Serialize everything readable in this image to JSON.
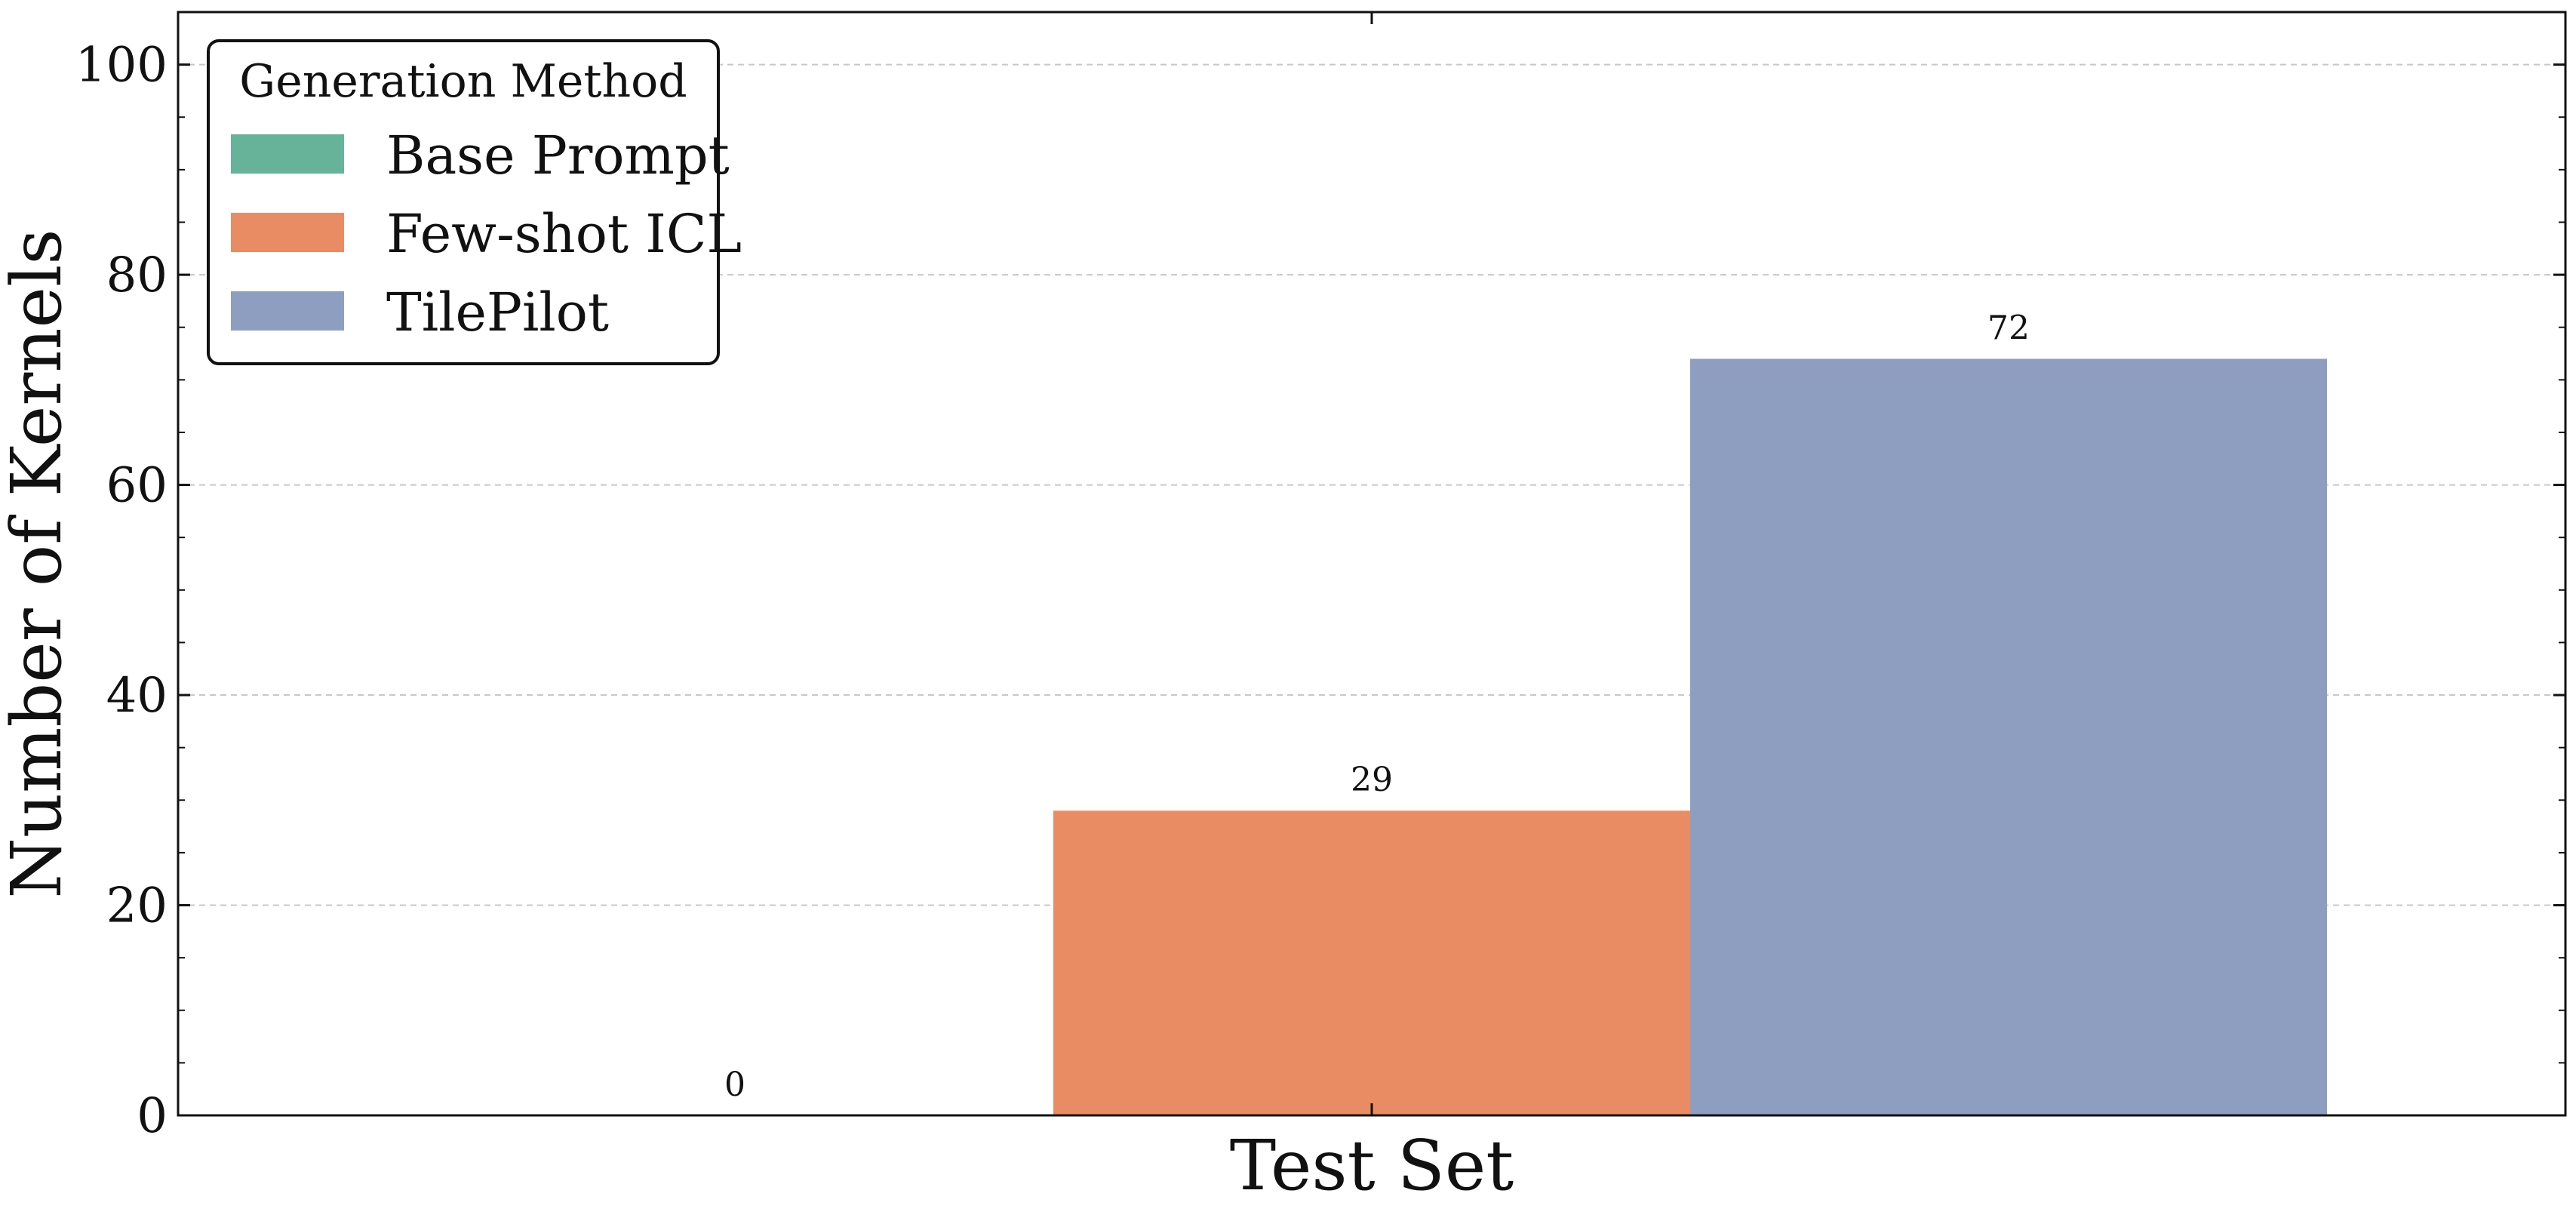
{
  "chart_data": {
    "type": "bar",
    "categories": [
      "Test Set"
    ],
    "series": [
      {
        "name": "Base Prompt",
        "values": [
          0
        ],
        "color": "#66b39a"
      },
      {
        "name": "Few-shot ICL",
        "values": [
          29
        ],
        "color": "#e98c64"
      },
      {
        "name": "TilePilot",
        "values": [
          72
        ],
        "color": "#8d9ec0"
      }
    ],
    "xlabel": "Test Set",
    "ylabel": "Number of Kernels",
    "ylim": [
      0,
      105
    ],
    "yticks": [
      0,
      20,
      40,
      60,
      80,
      100
    ],
    "grid": true,
    "legend": {
      "title": "Generation Method",
      "placement": "top-left"
    }
  }
}
